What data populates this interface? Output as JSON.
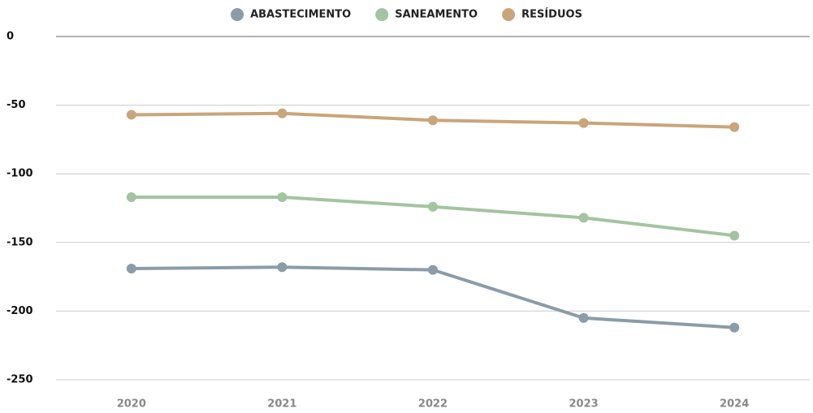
{
  "chart_data": {
    "type": "line",
    "categories": [
      "2020",
      "2021",
      "2022",
      "2023",
      "2024"
    ],
    "series": [
      {
        "name": "ABASTECIMENTO",
        "color": "#8a9ca8",
        "values": [
          -169,
          -168,
          -170,
          -205,
          -212
        ]
      },
      {
        "name": "SANEAMENTO",
        "color": "#a3c4a0",
        "values": [
          -117,
          -117,
          -124,
          -132,
          -145
        ]
      },
      {
        "name": "RESÍDUOS",
        "color": "#c9a57a",
        "values": [
          -57,
          -56,
          -61,
          -63,
          -66
        ]
      }
    ],
    "ylim": [
      -250,
      0
    ],
    "yticks": [
      0,
      -50,
      -100,
      -150,
      -200,
      -250
    ],
    "grid": true,
    "legend": "top"
  }
}
